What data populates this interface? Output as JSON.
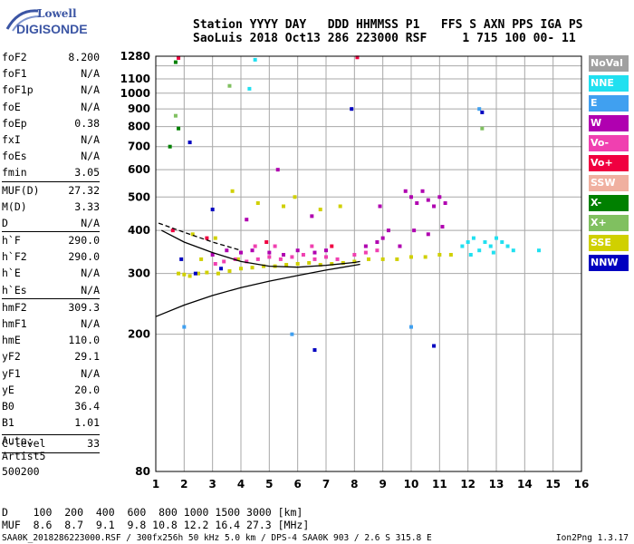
{
  "logo": {
    "top": "Lowell",
    "bottom": "DIGISONDE"
  },
  "header": {
    "line1": "Station YYYY DAY   DDD HHMMSS P1   FFS S AXN PPS IGA PS",
    "line2": "SaoLuis 2018 Oct13 286 223000 RSF     1 715 100 00- 11"
  },
  "params": [
    {
      "label": "foF2",
      "value": "8.200"
    },
    {
      "label": "foF1",
      "value": "N/A"
    },
    {
      "label": "foF1p",
      "value": "N/A"
    },
    {
      "label": "foE",
      "value": "N/A"
    },
    {
      "label": "foEp",
      "value": "0.38"
    },
    {
      "label": "fxI",
      "value": "N/A"
    },
    {
      "label": "foEs",
      "value": "N/A"
    },
    {
      "label": "fmin",
      "value": "3.05"
    },
    {
      "label": "MUF(D)",
      "value": "27.32"
    },
    {
      "label": "M(D)",
      "value": "3.33"
    },
    {
      "label": "D",
      "value": "N/A"
    },
    {
      "label": "h`F",
      "value": "290.0"
    },
    {
      "label": "h`F2",
      "value": "290.0"
    },
    {
      "label": "h`E",
      "value": "N/A"
    },
    {
      "label": "h`Es",
      "value": "N/A"
    },
    {
      "label": "hmF2",
      "value": "309.3"
    },
    {
      "label": "hmF1",
      "value": "N/A"
    },
    {
      "label": "hmE",
      "value": "110.0"
    },
    {
      "label": "yF2",
      "value": "29.1"
    },
    {
      "label": "yF1",
      "value": "N/A"
    },
    {
      "label": "yE",
      "value": "20.0"
    },
    {
      "label": "B0",
      "value": "36.4"
    },
    {
      "label": "B1",
      "value": "1.01"
    },
    {
      "label": "C-level",
      "value": "33"
    }
  ],
  "auto": {
    "line1": "Auto:",
    "line2": "Artist5",
    "line3": "500200"
  },
  "legend": [
    {
      "label": "NoVal",
      "color": "#a0a0a0"
    },
    {
      "label": "NNE",
      "color": "#20e0f0"
    },
    {
      "label": "E",
      "color": "#40a0f0"
    },
    {
      "label": "W",
      "color": "#b000b0"
    },
    {
      "label": "Vo-",
      "color": "#f040b0"
    },
    {
      "label": "Vo+",
      "color": "#f00040"
    },
    {
      "label": "SSW",
      "color": "#f0b0a0"
    },
    {
      "label": "X-",
      "color": "#008000"
    },
    {
      "label": "X+",
      "color": "#80c060"
    },
    {
      "label": "SSE",
      "color": "#d0d000"
    },
    {
      "label": "NNW",
      "color": "#0000c0"
    }
  ],
  "muf_table": {
    "line1": "D    100  200  400  600  800 1000 1500 3000 [km]",
    "line2": "MUF  8.6  8.7  9.1  9.8 10.8 12.2 16.4 27.3 [MHz]"
  },
  "footer": "SAA0K_2018286223000.RSF / 300fx256h 50 kHz 5.0 km / DPS-4 SAA0K 903 / 2.6 S 315.8 E",
  "footer_version": "Ion2Png 1.3.17",
  "chart_data": {
    "type": "scatter",
    "title": "",
    "xlabel": "",
    "ylabel": "",
    "x_scale": "linear",
    "y_scale": "log",
    "xlim": [
      1,
      16
    ],
    "ylim": [
      80,
      1280
    ],
    "x_ticks": [
      "1",
      "2",
      "3",
      "4",
      "5",
      "6",
      "7",
      "8",
      "9",
      "10",
      "11",
      "12",
      "13",
      "14",
      "15",
      "16"
    ],
    "y_ticks": [
      "80",
      "200",
      "300",
      "400",
      "500",
      "600",
      "700",
      "800",
      "900",
      "1000",
      "1100",
      "1280"
    ],
    "y_tick_values": [
      80,
      200,
      300,
      400,
      500,
      600,
      700,
      800,
      900,
      1000,
      1100,
      1280
    ],
    "grid": true,
    "series": [
      {
        "color": "#d0d000",
        "points": [
          [
            1.8,
            300
          ],
          [
            2.0,
            298
          ],
          [
            2.2,
            295
          ],
          [
            2.5,
            300
          ],
          [
            2.8,
            302
          ],
          [
            3.2,
            300
          ],
          [
            3.6,
            305
          ],
          [
            4.0,
            310
          ],
          [
            4.4,
            312
          ],
          [
            4.8,
            315
          ],
          [
            5.2,
            315
          ],
          [
            5.6,
            318
          ],
          [
            6.0,
            320
          ],
          [
            6.4,
            322
          ],
          [
            6.8,
            318
          ],
          [
            7.2,
            320
          ],
          [
            7.6,
            322
          ],
          [
            8.0,
            325
          ],
          [
            8.5,
            330
          ],
          [
            9.0,
            330
          ],
          [
            9.5,
            330
          ],
          [
            10.0,
            335
          ],
          [
            10.5,
            335
          ],
          [
            11.0,
            340
          ],
          [
            11.4,
            340
          ],
          [
            4.6,
            480
          ],
          [
            5.5,
            470
          ],
          [
            6.8,
            460
          ],
          [
            3.7,
            520
          ],
          [
            3.1,
            380
          ],
          [
            2.3,
            390
          ],
          [
            5.9,
            500
          ],
          [
            7.5,
            470
          ],
          [
            2.6,
            330
          ],
          [
            3.9,
            330
          ]
        ]
      },
      {
        "color": "#f040b0",
        "points": [
          [
            3.1,
            320
          ],
          [
            3.4,
            325
          ],
          [
            3.8,
            330
          ],
          [
            4.2,
            325
          ],
          [
            4.6,
            330
          ],
          [
            5.0,
            335
          ],
          [
            5.4,
            330
          ],
          [
            5.8,
            335
          ],
          [
            6.2,
            340
          ],
          [
            6.6,
            330
          ],
          [
            7.0,
            335
          ],
          [
            7.4,
            330
          ],
          [
            8.0,
            340
          ],
          [
            8.4,
            345
          ],
          [
            8.8,
            350
          ],
          [
            4.5,
            360
          ],
          [
            5.2,
            360
          ],
          [
            6.5,
            360
          ]
        ]
      },
      {
        "color": "#b000b0",
        "points": [
          [
            3.0,
            340
          ],
          [
            3.5,
            350
          ],
          [
            4.0,
            345
          ],
          [
            4.4,
            350
          ],
          [
            5.0,
            345
          ],
          [
            5.5,
            340
          ],
          [
            6.0,
            350
          ],
          [
            6.6,
            345
          ],
          [
            7.0,
            350
          ],
          [
            8.4,
            360
          ],
          [
            8.8,
            370
          ],
          [
            9.0,
            380
          ],
          [
            9.6,
            360
          ],
          [
            10.0,
            500
          ],
          [
            10.2,
            480
          ],
          [
            10.4,
            520
          ],
          [
            10.6,
            490
          ],
          [
            10.8,
            470
          ],
          [
            11.0,
            500
          ],
          [
            11.2,
            480
          ],
          [
            9.8,
            520
          ],
          [
            10.1,
            400
          ],
          [
            10.6,
            390
          ],
          [
            11.1,
            410
          ],
          [
            9.2,
            400
          ],
          [
            8.9,
            470
          ],
          [
            5.3,
            600
          ],
          [
            4.2,
            430
          ],
          [
            6.5,
            440
          ]
        ]
      },
      {
        "color": "#20e0f0",
        "points": [
          [
            11.8,
            360
          ],
          [
            12.0,
            370
          ],
          [
            12.2,
            380
          ],
          [
            12.4,
            350
          ],
          [
            12.6,
            370
          ],
          [
            12.8,
            360
          ],
          [
            13.0,
            380
          ],
          [
            13.2,
            370
          ],
          [
            13.4,
            360
          ],
          [
            13.6,
            350
          ],
          [
            12.1,
            340
          ],
          [
            12.9,
            345
          ],
          [
            14.5,
            350
          ],
          [
            4.3,
            1030
          ],
          [
            4.5,
            1250
          ]
        ]
      },
      {
        "color": "#40a0f0",
        "points": [
          [
            2.0,
            210
          ],
          [
            10.0,
            210
          ],
          [
            12.4,
            900
          ],
          [
            5.8,
            200
          ]
        ]
      },
      {
        "color": "#0000c0",
        "points": [
          [
            1.9,
            330
          ],
          [
            2.4,
            300
          ],
          [
            3.3,
            310
          ],
          [
            2.2,
            720
          ],
          [
            3.0,
            460
          ],
          [
            6.6,
            180
          ],
          [
            7.9,
            900
          ],
          [
            10.8,
            185
          ],
          [
            12.5,
            880
          ]
        ]
      },
      {
        "color": "#f00040",
        "points": [
          [
            1.6,
            400
          ],
          [
            2.8,
            380
          ],
          [
            4.9,
            370
          ],
          [
            7.2,
            360
          ],
          [
            8.1,
            1270
          ],
          [
            1.8,
            1265
          ]
        ]
      },
      {
        "color": "#008000",
        "points": [
          [
            1.5,
            700
          ],
          [
            1.7,
            1230
          ],
          [
            1.8,
            790
          ]
        ]
      },
      {
        "color": "#80c060",
        "points": [
          [
            1.7,
            860
          ],
          [
            12.5,
            790
          ],
          [
            3.6,
            1050
          ]
        ]
      }
    ],
    "curves": [
      {
        "color": "#000000",
        "points": [
          [
            1.0,
            225
          ],
          [
            2.0,
            243
          ],
          [
            3.0,
            259
          ],
          [
            4.0,
            273
          ],
          [
            5.0,
            285
          ],
          [
            6.0,
            296
          ],
          [
            7.0,
            307
          ],
          [
            8.0,
            317
          ],
          [
            8.2,
            319
          ]
        ]
      },
      {
        "color": "#000000",
        "points": [
          [
            1.2,
            400
          ],
          [
            2.0,
            370
          ],
          [
            3.0,
            345
          ],
          [
            4.0,
            325
          ],
          [
            5.0,
            315
          ],
          [
            6.0,
            313
          ],
          [
            7.0,
            317
          ],
          [
            8.0,
            323
          ],
          [
            8.2,
            325
          ]
        ]
      },
      {
        "color": "#000000",
        "dashed": true,
        "points": [
          [
            1.1,
            420
          ],
          [
            2.0,
            395
          ],
          [
            3.0,
            370
          ],
          [
            4.0,
            350
          ]
        ]
      }
    ]
  }
}
